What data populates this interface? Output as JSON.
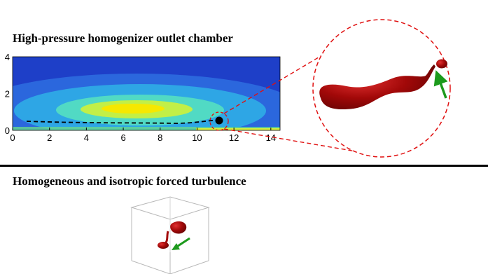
{
  "top_panel": {
    "title": "High-pressure homogenizer outlet chamber",
    "x_ticks": [
      "0",
      "2",
      "4",
      "6",
      "8",
      "10",
      "12",
      "14"
    ],
    "y_ticks": [
      "0",
      "2",
      "4"
    ],
    "x_range": [
      0,
      14.5
    ],
    "y_range": [
      0,
      4
    ]
  },
  "bottom_panel": {
    "title": "Homogeneous and isotropic forced turbulence"
  },
  "colors": {
    "droplet": "#a30d0d",
    "callout": "#e01010",
    "arrow": "#1c9a1c",
    "trajectory": "#000000"
  },
  "icons": [
    "droplet-blob",
    "green-arrow-icon",
    "cube-wireframe"
  ]
}
